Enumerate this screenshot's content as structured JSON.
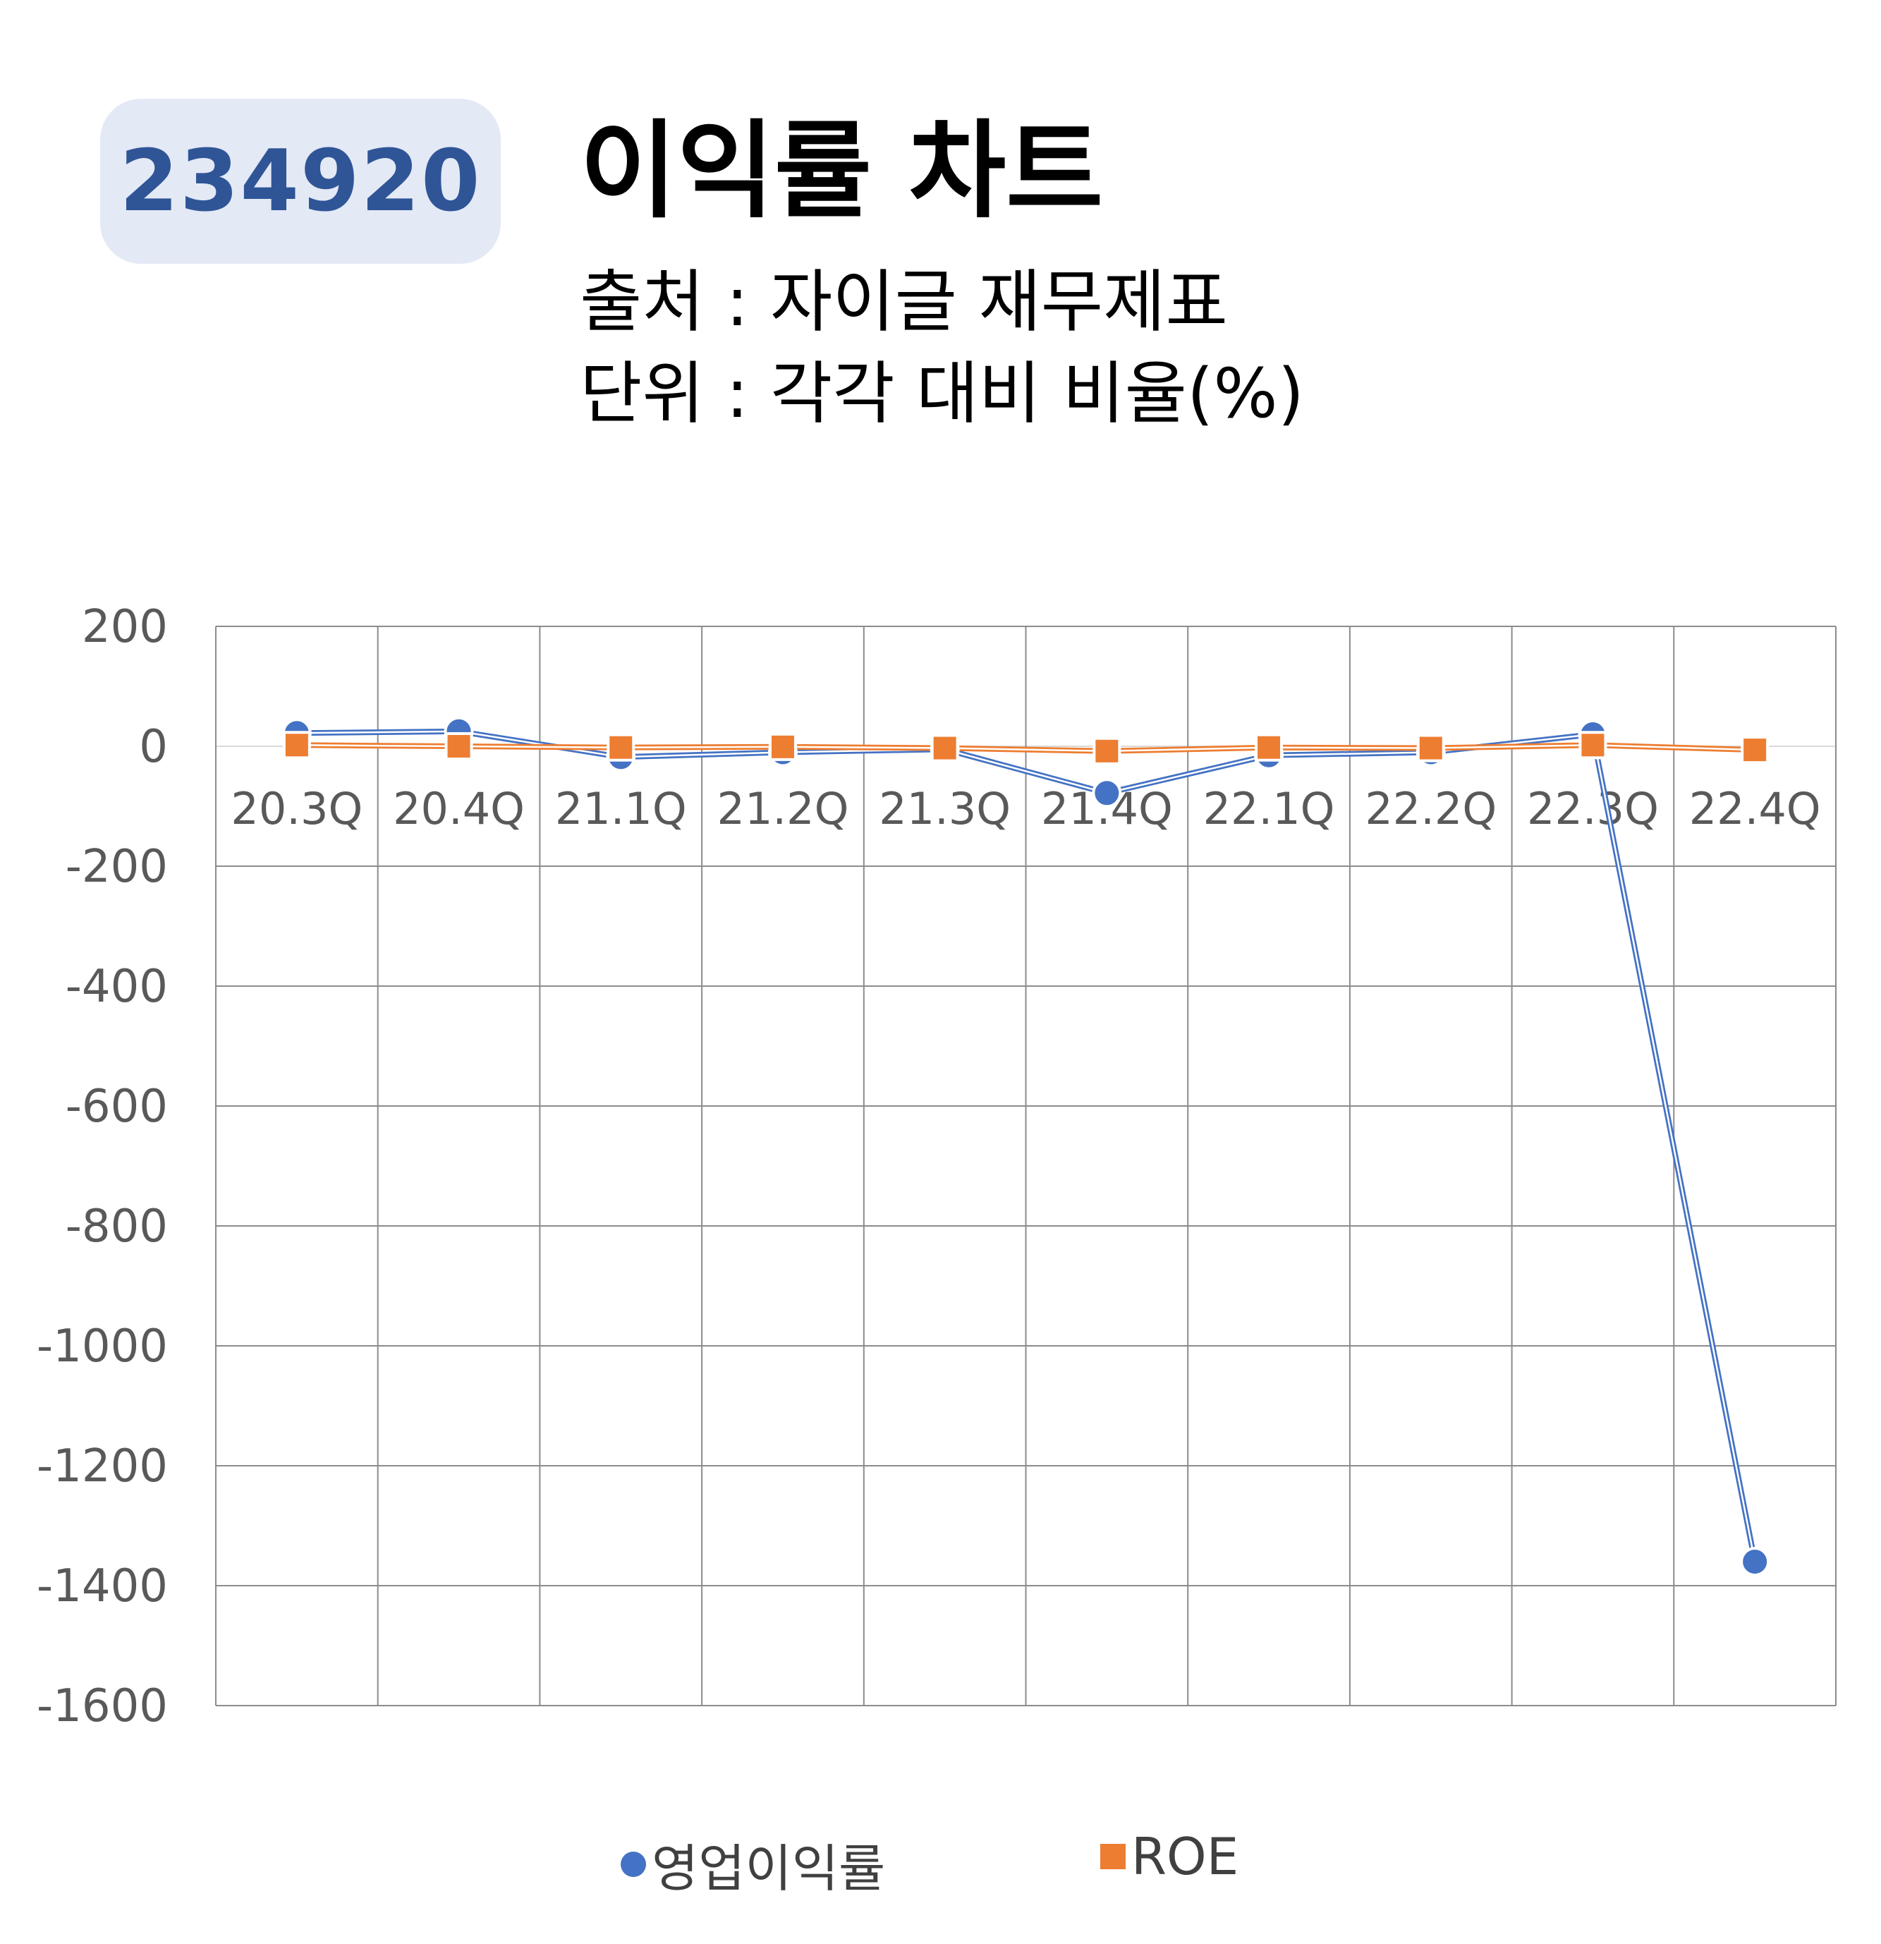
{
  "header": {
    "code": "234920",
    "title": "이익률 차트",
    "source": "출처 : 자이글 재무제표",
    "unit": "단위 : 각각 대비 비율(%)"
  },
  "colors": {
    "badge_bg": "#e3e9f5",
    "badge_text": "#2f5597",
    "series_operating_margin": "#4472c4",
    "series_roe": "#ed7d31",
    "grid": "#8c8c8c",
    "axis_text": "#595959"
  },
  "chart_data": {
    "type": "line",
    "categories": [
      "20.3Q",
      "20.4Q",
      "21.1Q",
      "21.2Q",
      "21.3Q",
      "21.4Q",
      "22.1Q",
      "22.2Q",
      "22.3Q",
      "22.4Q"
    ],
    "series": [
      {
        "name": "영업이익률",
        "marker": "circle",
        "color": "#4472c4",
        "values": [
          22,
          25,
          -18,
          -10,
          -5,
          -78,
          -15,
          -10,
          20,
          -1360
        ]
      },
      {
        "name": "ROE",
        "marker": "square",
        "color": "#ed7d31",
        "values": [
          2,
          0,
          -2,
          -1,
          -3,
          -8,
          -2,
          -3,
          2,
          -6
        ]
      }
    ],
    "ylim": [
      -1600,
      200
    ],
    "yticks": [
      200,
      0,
      -200,
      -400,
      -600,
      -800,
      -1000,
      -1200,
      -1400,
      -1600
    ],
    "grid": true,
    "legend_position": "bottom"
  }
}
